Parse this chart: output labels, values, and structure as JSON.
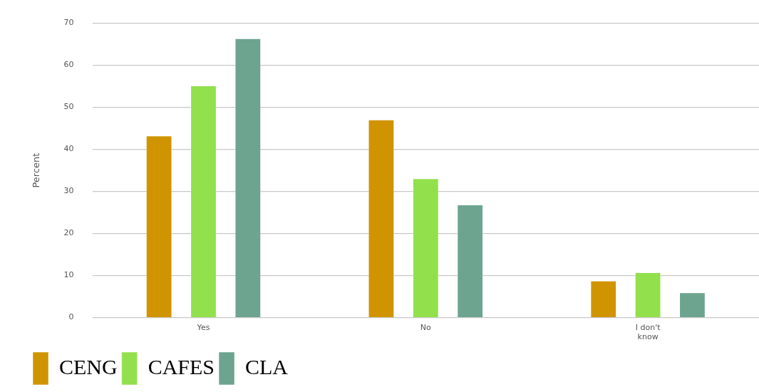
{
  "chart_data": {
    "type": "bar",
    "ylabel": "Percent",
    "categories": [
      "Yes",
      "No",
      "I don't know"
    ],
    "series": [
      {
        "name": "CENG",
        "color": "#d09400",
        "values": [
          43.3,
          47.1,
          8.8
        ]
      },
      {
        "name": "CAFES",
        "color": "#92e04c",
        "values": [
          55.2,
          33.1,
          10.8
        ]
      },
      {
        "name": "CLA",
        "color": "#6ca48f",
        "values": [
          66.4,
          26.9,
          6.0
        ]
      }
    ],
    "ylim": [
      0,
      70
    ],
    "yticks": [
      0,
      10,
      20,
      30,
      40,
      50,
      60,
      70
    ],
    "grid": "y",
    "legend": "bottom left"
  }
}
